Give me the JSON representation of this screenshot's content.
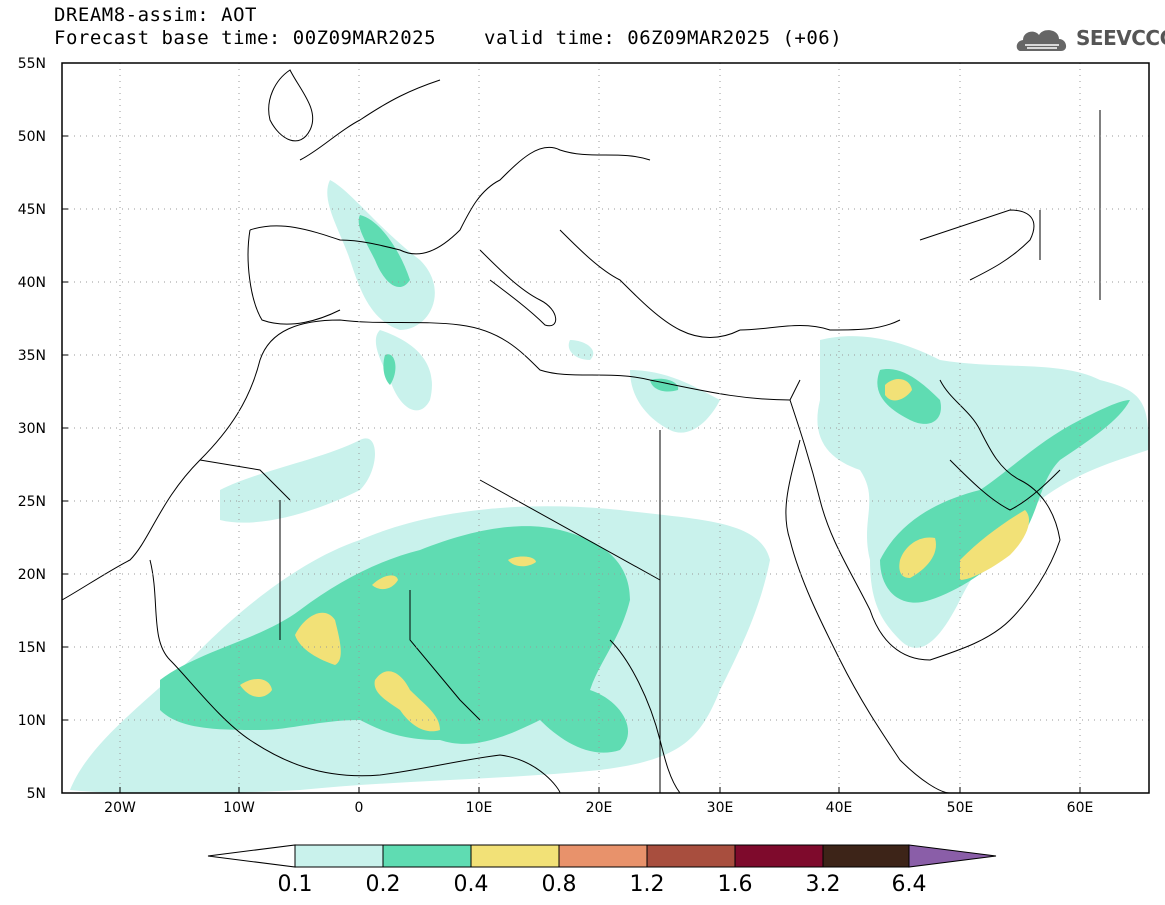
{
  "header": {
    "title": "DREAM8-assim: AOT",
    "base_time": "Forecast base time: 00Z09MAR2025",
    "valid_time": "valid time: 06Z09MAR2025 (+06)",
    "logo_text": "SEEVCCC"
  },
  "map": {
    "lat_labels": [
      "55N",
      "50N",
      "45N",
      "40N",
      "35N",
      "30N",
      "25N",
      "20N",
      "15N",
      "10N",
      "5N"
    ],
    "lon_labels": [
      "20W",
      "10W",
      "0",
      "10E",
      "20E",
      "30E",
      "40E",
      "50E",
      "60E"
    ],
    "lon_range": [
      -25,
      65
    ],
    "lat_range": [
      5,
      55
    ],
    "gridlines": true
  },
  "legend": {
    "labels": [
      "0.1",
      "0.2",
      "0.4",
      "0.8",
      "1.2",
      "1.6",
      "3.2",
      "6.4"
    ],
    "colors": [
      "#ffffff",
      "#c9f2ec",
      "#5fdcb2",
      "#f2e177",
      "#e8926b",
      "#a84e3e",
      "#7e0a2c",
      "#3d2418",
      "#8a5ea8"
    ]
  }
}
